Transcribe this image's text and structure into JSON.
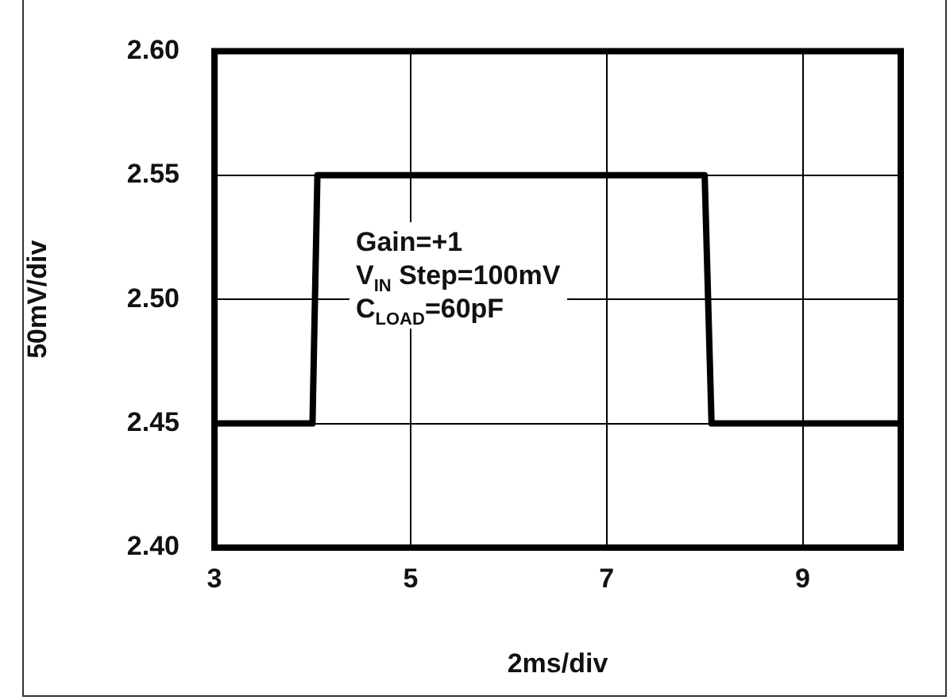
{
  "chart_data": {
    "type": "line",
    "xlabel": "2ms/div",
    "ylabel": "50mV/div",
    "x": [
      3,
      4.0,
      4.05,
      8.0,
      8.07,
      10
    ],
    "series": [
      {
        "color": "#000000",
        "values": [
          2.45,
          2.45,
          2.55,
          2.55,
          2.45,
          2.45
        ]
      }
    ],
    "xlim": [
      3,
      10
    ],
    "xticks": [
      3,
      5,
      7,
      9
    ],
    "ylim": [
      2.4,
      2.6
    ],
    "yticks": [
      {
        "value": 2.4,
        "label": "2.40"
      },
      {
        "value": 2.45,
        "label": "2.45"
      },
      {
        "value": 2.5,
        "label": "2.50"
      },
      {
        "value": 2.55,
        "label": "2.55"
      },
      {
        "value": 2.6,
        "label": "2.60"
      }
    ],
    "grid": true,
    "legend": false,
    "marker": "none",
    "line_style": "solid",
    "annotations": [
      "Gain=+1",
      "V$_{IN}$ Step=100mV",
      "C$_{LOAD}$=60pF"
    ]
  }
}
